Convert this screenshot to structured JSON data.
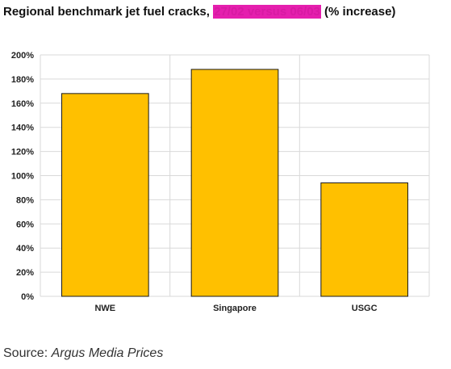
{
  "title": {
    "prefix": "Regional benchmark jet fuel cracks, ",
    "highlight": "27/02 versus 06/03",
    "suffix": " (% increase)"
  },
  "source": {
    "label": "Source: ",
    "name": "Argus Media Prices"
  },
  "colors": {
    "bar": "#FFC000",
    "bar_outline": "#1a1a1a",
    "grid": "#d9d9d9",
    "highlight": "#e51fae"
  },
  "chart_data": {
    "type": "bar",
    "categories": [
      "NWE",
      "Singapore",
      "USGC"
    ],
    "values": [
      168,
      188,
      94
    ],
    "ylim": [
      0,
      200
    ],
    "y_ticks": [
      "0%",
      "20%",
      "40%",
      "60%",
      "80%",
      "100%",
      "120%",
      "140%",
      "160%",
      "180%",
      "200%"
    ],
    "grid": true,
    "xlabel": "",
    "ylabel": ""
  }
}
